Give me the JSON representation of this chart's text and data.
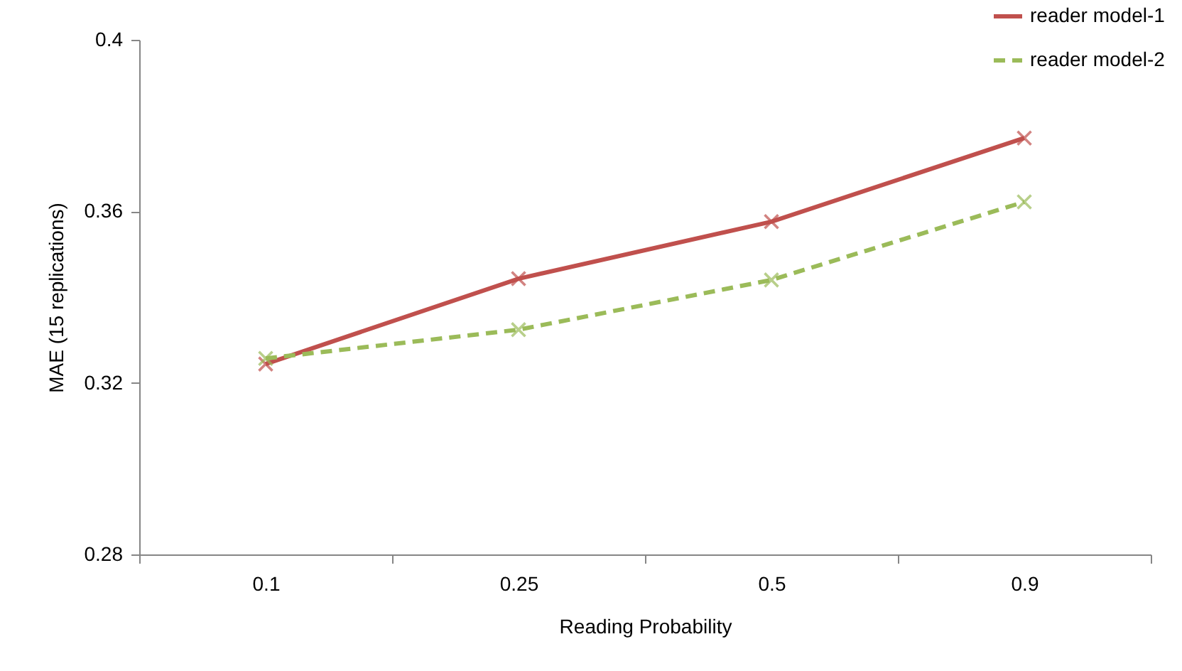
{
  "chart_data": {
    "type": "line",
    "xlabel": "Reading Probability",
    "ylabel": "MAE (15 replications)",
    "categories": [
      "0.1",
      "0.25",
      "0.5",
      "0.9"
    ],
    "series": [
      {
        "name": "reader model-1",
        "color": "#c0504d",
        "values": [
          0.3244,
          0.3443,
          0.3576,
          0.3771
        ],
        "marker": "cross",
        "line_style": "solid"
      },
      {
        "name": "reader model-2",
        "color": "#9bbb59",
        "values": [
          0.3257,
          0.3324,
          0.344,
          0.3622
        ],
        "marker": "cross",
        "line_style": "dashed"
      }
    ],
    "ylim": [
      0.28,
      0.4
    ],
    "yticks": [
      0.28,
      0.32,
      0.36,
      0.4
    ],
    "grid": false,
    "legend": "top right"
  }
}
